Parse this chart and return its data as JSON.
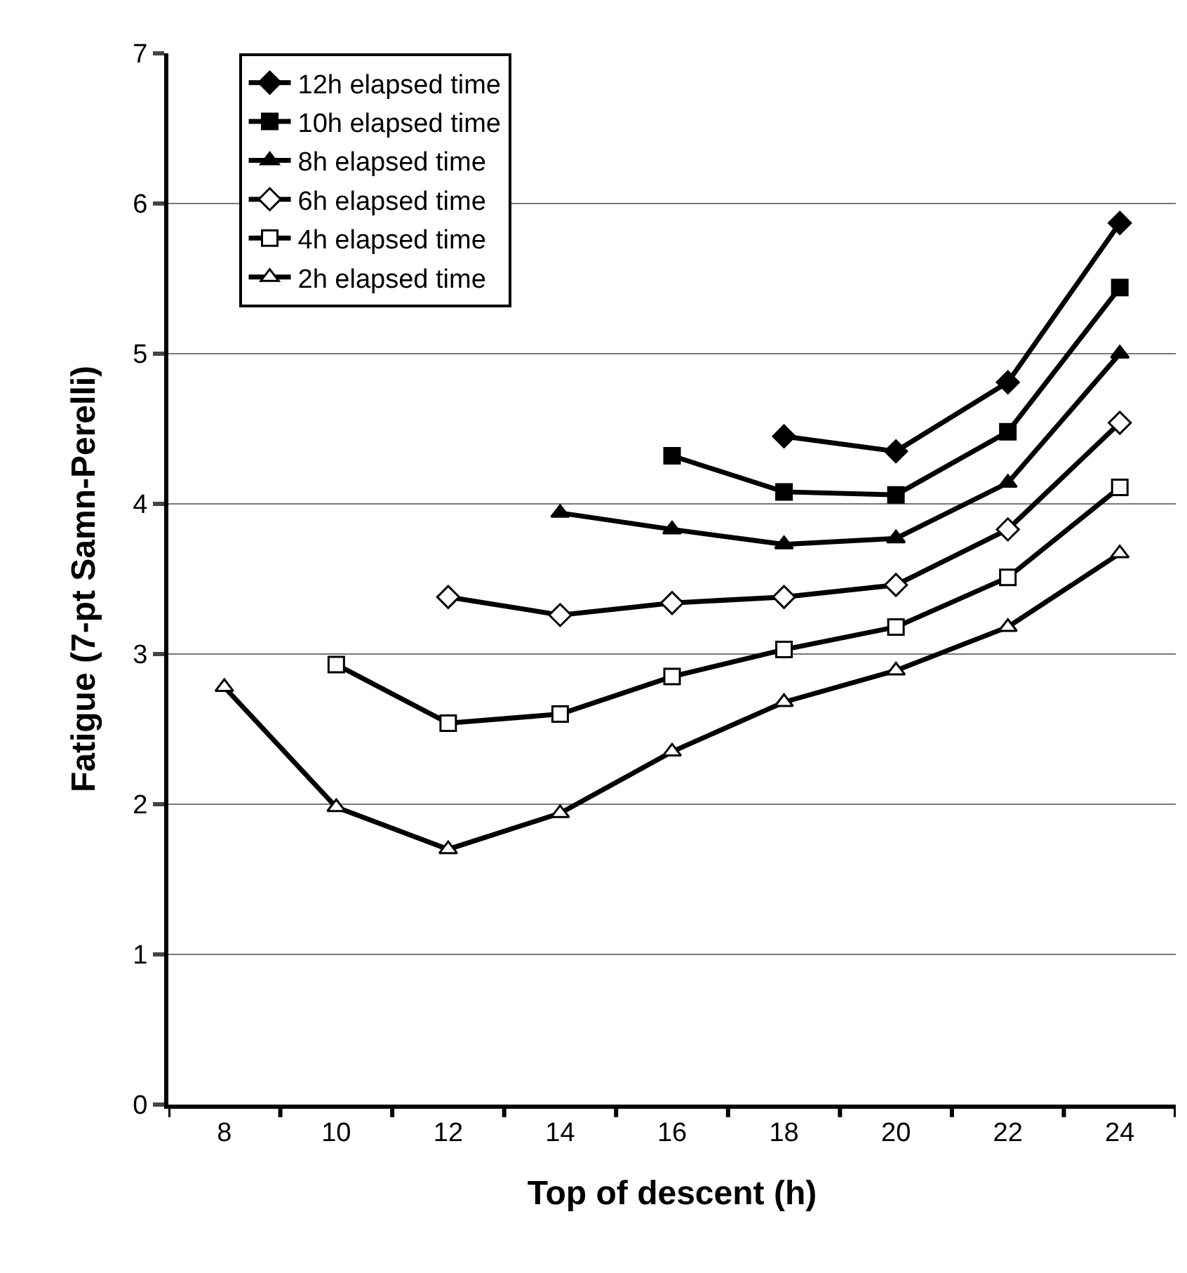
{
  "chart_data": {
    "type": "line",
    "xlabel": "Top of descent (h)",
    "ylabel": "Fatigue (7-pt Samn-Perelli)",
    "categories": [
      "8",
      "10",
      "12",
      "14",
      "16",
      "18",
      "20",
      "22",
      "24"
    ],
    "ylim": [
      0,
      7
    ],
    "yticks": [
      0,
      1,
      2,
      3,
      4,
      5,
      6,
      7
    ],
    "grid": "y",
    "legend": "top left",
    "line_style": "solid",
    "series": [
      {
        "name": "12h elapsed time",
        "color": "#000000",
        "marker": "diamond",
        "values": [
          null,
          null,
          null,
          null,
          null,
          4.45,
          4.35,
          4.81,
          5.87
        ]
      },
      {
        "name": "10h elapsed time",
        "color": "#000000",
        "marker": "square",
        "values": [
          null,
          null,
          null,
          null,
          4.32,
          4.08,
          4.06,
          4.48,
          5.44
        ]
      },
      {
        "name": "8h elapsed time",
        "color": "#000000",
        "marker": "triangle",
        "values": [
          null,
          null,
          null,
          3.94,
          3.83,
          3.73,
          3.77,
          4.14,
          5.0
        ]
      },
      {
        "name": "6h elapsed time",
        "color": "#000000",
        "marker": "diamond",
        "colors": [
          "#ffffff",
          "#ffffff",
          "#ffffff",
          "#ffffff",
          "#ffffff",
          "#ffffff",
          "#ffffff",
          "#ffffff",
          "#ffffff"
        ],
        "values": [
          null,
          null,
          3.38,
          3.26,
          3.34,
          3.38,
          3.46,
          3.83,
          4.54
        ]
      },
      {
        "name": "4h elapsed time",
        "color": "#000000",
        "marker": "square",
        "colors": [
          "#ffffff",
          "#ffffff",
          "#ffffff",
          "#ffffff",
          "#ffffff",
          "#ffffff",
          "#ffffff",
          "#ffffff",
          "#ffffff"
        ],
        "values": [
          null,
          2.93,
          2.54,
          2.6,
          2.85,
          3.03,
          3.18,
          3.51,
          4.11
        ]
      },
      {
        "name": "2h elapsed time",
        "color": "#000000",
        "marker": "triangle",
        "colors": [
          "#ffffff",
          "#ffffff",
          "#ffffff",
          "#ffffff",
          "#ffffff",
          "#ffffff",
          "#ffffff",
          "#ffffff",
          "#ffffff"
        ],
        "values": [
          2.78,
          1.98,
          1.7,
          1.94,
          2.35,
          2.68,
          2.89,
          3.18,
          3.67
        ]
      }
    ]
  }
}
